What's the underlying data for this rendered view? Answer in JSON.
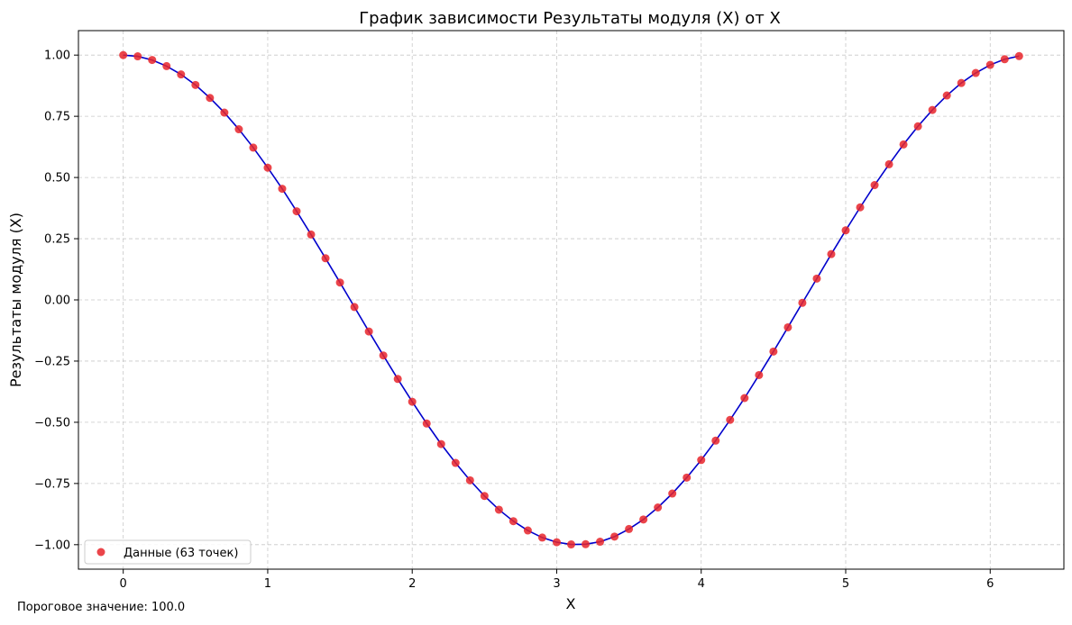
{
  "chart_data": {
    "type": "scatter",
    "title": "График зависимости Результаты модуля (X) от X",
    "xlabel": "X",
    "ylabel": "Результаты модуля (X)",
    "xlim": [
      -0.31,
      6.51
    ],
    "ylim": [
      -1.1,
      1.1
    ],
    "xticks": [
      0,
      1,
      2,
      3,
      4,
      5,
      6
    ],
    "yticks": [
      -1.0,
      -0.75,
      -0.5,
      -0.25,
      0.0,
      0.25,
      0.5,
      0.75,
      1.0
    ],
    "xtick_labels": [
      "0",
      "1",
      "2",
      "3",
      "4",
      "5",
      "6"
    ],
    "ytick_labels": [
      "−1.00",
      "−0.75",
      "−0.50",
      "−0.25",
      "0.00",
      "0.25",
      "0.50",
      "0.75",
      "1.00"
    ],
    "grid": true,
    "grid_style": "dashed",
    "legend_position": "lower-left",
    "series": [
      {
        "name": "Данные (63 точек)",
        "kind": "scatter",
        "color": "#e8242a",
        "x": [
          0,
          0.1,
          0.2,
          0.3,
          0.4,
          0.5,
          0.6,
          0.7,
          0.8,
          0.9,
          1.0,
          1.1,
          1.2,
          1.3,
          1.4,
          1.5,
          1.6,
          1.7,
          1.8,
          1.9,
          2.0,
          2.1,
          2.2,
          2.3,
          2.4,
          2.5,
          2.6,
          2.7,
          2.8,
          2.9,
          3.0,
          3.1,
          3.2,
          3.3,
          3.4,
          3.5,
          3.6,
          3.7,
          3.8,
          3.9,
          4.0,
          4.1,
          4.2,
          4.3,
          4.4,
          4.5,
          4.6,
          4.7,
          4.8,
          4.9,
          5.0,
          5.1,
          5.2,
          5.3,
          5.4,
          5.5,
          5.6,
          5.7,
          5.8,
          5.9,
          6.0,
          6.1,
          6.2
        ],
        "y": [
          1.0,
          0.995,
          0.98,
          0.955,
          0.921,
          0.878,
          0.825,
          0.765,
          0.697,
          0.622,
          0.54,
          0.454,
          0.362,
          0.267,
          0.17,
          0.071,
          -0.029,
          -0.129,
          -0.227,
          -0.323,
          -0.416,
          -0.505,
          -0.589,
          -0.666,
          -0.737,
          -0.801,
          -0.857,
          -0.904,
          -0.942,
          -0.971,
          -0.99,
          -0.999,
          -0.998,
          -0.988,
          -0.967,
          -0.936,
          -0.897,
          -0.848,
          -0.791,
          -0.726,
          -0.654,
          -0.575,
          -0.49,
          -0.401,
          -0.307,
          -0.211,
          -0.112,
          -0.012,
          0.087,
          0.187,
          0.284,
          0.378,
          0.469,
          0.554,
          0.635,
          0.709,
          0.776,
          0.835,
          0.886,
          0.927,
          0.96,
          0.983,
          0.996
        ]
      },
      {
        "kind": "line",
        "color": "#0000cc",
        "x": [
          0,
          0.1,
          0.2,
          0.3,
          0.4,
          0.5,
          0.6,
          0.7,
          0.8,
          0.9,
          1.0,
          1.1,
          1.2,
          1.3,
          1.4,
          1.5,
          1.6,
          1.7,
          1.8,
          1.9,
          2.0,
          2.1,
          2.2,
          2.3,
          2.4,
          2.5,
          2.6,
          2.7,
          2.8,
          2.9,
          3.0,
          3.1,
          3.2,
          3.3,
          3.4,
          3.5,
          3.6,
          3.7,
          3.8,
          3.9,
          4.0,
          4.1,
          4.2,
          4.3,
          4.4,
          4.5,
          4.6,
          4.7,
          4.8,
          4.9,
          5.0,
          5.1,
          5.2,
          5.3,
          5.4,
          5.5,
          5.6,
          5.7,
          5.8,
          5.9,
          6.0,
          6.1,
          6.2
        ],
        "y": [
          1.0,
          0.995,
          0.98,
          0.955,
          0.921,
          0.878,
          0.825,
          0.765,
          0.697,
          0.622,
          0.54,
          0.454,
          0.362,
          0.267,
          0.17,
          0.071,
          -0.029,
          -0.129,
          -0.227,
          -0.323,
          -0.416,
          -0.505,
          -0.589,
          -0.666,
          -0.737,
          -0.801,
          -0.857,
          -0.904,
          -0.942,
          -0.971,
          -0.99,
          -0.999,
          -0.998,
          -0.988,
          -0.967,
          -0.936,
          -0.897,
          -0.848,
          -0.791,
          -0.726,
          -0.654,
          -0.575,
          -0.49,
          -0.401,
          -0.307,
          -0.211,
          -0.112,
          -0.012,
          0.087,
          0.187,
          0.284,
          0.378,
          0.469,
          0.554,
          0.635,
          0.709,
          0.776,
          0.835,
          0.886,
          0.927,
          0.96,
          0.983,
          0.996
        ]
      }
    ]
  },
  "footnote": "Пороговое значение: 100.0"
}
